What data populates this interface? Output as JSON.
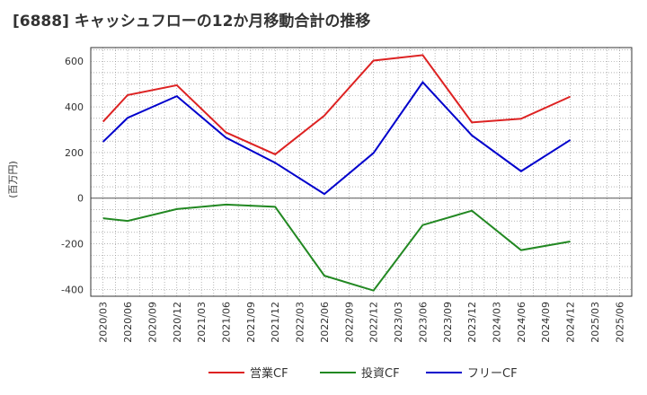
{
  "chart_data": {
    "type": "line",
    "title": "[6888]  キャッシュフローの12か月移動合計の推移",
    "ylabel": "(百万円)",
    "xlabel": "",
    "ylim": [
      -430,
      660
    ],
    "yticks": [
      -400,
      -200,
      0,
      200,
      400,
      600
    ],
    "x_categories": [
      "2020/03",
      "2020/06",
      "2020/09",
      "2020/12",
      "2021/03",
      "2021/06",
      "2021/09",
      "2021/12",
      "2022/03",
      "2022/06",
      "2022/09",
      "2022/12",
      "2023/03",
      "2023/06",
      "2023/09",
      "2023/12",
      "2024/03",
      "2024/06",
      "2024/09",
      "2024/12",
      "2025/03",
      "2025/06"
    ],
    "grid": true,
    "legend_position": "bottom-center",
    "series": [
      {
        "name": "営業CF",
        "color": "#dd2222",
        "x": [
          "2020/03",
          "2020/06",
          "2020/12",
          "2021/06",
          "2021/12",
          "2022/06",
          "2022/12",
          "2023/06",
          "2023/12",
          "2024/06",
          "2024/12"
        ],
        "values": [
          335,
          452,
          495,
          288,
          192,
          362,
          603,
          627,
          332,
          348,
          445
        ]
      },
      {
        "name": "投資CF",
        "color": "#228822",
        "x": [
          "2020/03",
          "2020/06",
          "2020/12",
          "2021/06",
          "2021/12",
          "2022/06",
          "2022/12",
          "2023/06",
          "2023/12",
          "2024/06",
          "2024/12"
        ],
        "values": [
          -88,
          -100,
          -48,
          -28,
          -38,
          -340,
          -405,
          -118,
          -55,
          -228,
          -190
        ]
      },
      {
        "name": "フリーCF",
        "color": "#0000cc",
        "x": [
          "2020/03",
          "2020/06",
          "2020/12",
          "2021/06",
          "2021/12",
          "2022/06",
          "2022/12",
          "2023/06",
          "2023/12",
          "2024/06",
          "2024/12"
        ],
        "values": [
          247,
          352,
          447,
          265,
          155,
          18,
          198,
          508,
          275,
          118,
          255
        ]
      }
    ]
  }
}
